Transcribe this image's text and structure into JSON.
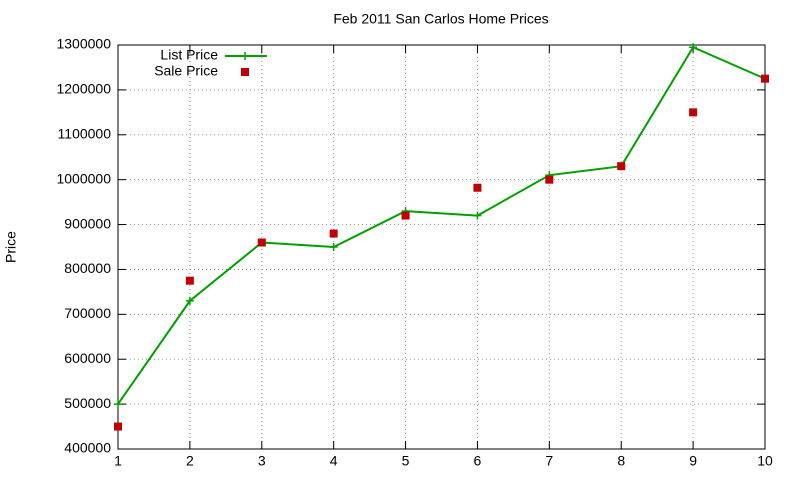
{
  "chart_data": {
    "type": "line",
    "title": "Feb 2011 San Carlos Home Prices",
    "y_label": "Price",
    "x": [
      1,
      2,
      3,
      4,
      5,
      6,
      7,
      8,
      9,
      10
    ],
    "series": [
      {
        "name": "List Price",
        "color": "#00a000",
        "line": true,
        "marker": "plus",
        "values": [
          500000,
          730000,
          860000,
          850000,
          930000,
          920000,
          1010000,
          1030000,
          1295000,
          1225000
        ]
      },
      {
        "name": "Sale Price",
        "color": "#c00000",
        "line": false,
        "marker": "square",
        "values": [
          450000,
          775000,
          860000,
          880000,
          920000,
          982000,
          1000000,
          1030000,
          1150000,
          1225000
        ]
      }
    ],
    "xlim": [
      1,
      10
    ],
    "xticks": [
      1,
      2,
      3,
      4,
      5,
      6,
      7,
      8,
      9,
      10
    ],
    "ylim": [
      400000,
      1300000
    ],
    "yticks": [
      400000,
      500000,
      600000,
      700000,
      800000,
      900000,
      1000000,
      1100000,
      1200000,
      1300000
    ],
    "grid": true,
    "legend": "top-left"
  }
}
